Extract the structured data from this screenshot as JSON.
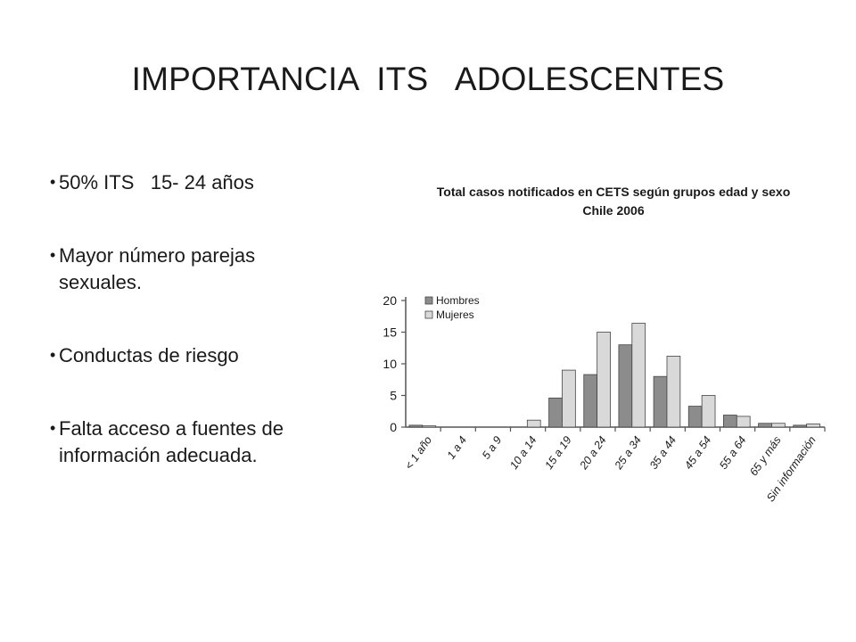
{
  "slide": {
    "title": "IMPORTANCIA  ITS   ADOLESCENTES",
    "bullets": [
      "50% ITS   15- 24 años",
      "Mayor número parejas sexuales.",
      "Conductas de riesgo",
      "Falta acceso a fuentes de información adecuada."
    ]
  },
  "chart_data": {
    "type": "bar",
    "title": "Total casos notificados en CETS según grupos edad y sexo",
    "subtitle": "Chile 2006",
    "categories": [
      "< 1 año",
      "1 a 4",
      "5 a 9",
      "10 a 14",
      "15 a 19",
      "20 a 24",
      "25 a 34",
      "35 a 44",
      "45 a 54",
      "55 a 64",
      "65 y más",
      "Sin información"
    ],
    "series": [
      {
        "name": "Hombres",
        "values": [
          0.3,
          0,
          0,
          0,
          4.6,
          8.3,
          13.0,
          8.0,
          3.3,
          1.9,
          0.6,
          0.3
        ],
        "color": "#8c8c8c"
      },
      {
        "name": "Mujeres",
        "values": [
          0.2,
          0,
          0,
          1.1,
          9.0,
          15.0,
          16.4,
          11.2,
          5.0,
          1.7,
          0.6,
          0.5
        ],
        "color": "#d9d9d9"
      }
    ],
    "ylim": [
      0,
      20
    ],
    "yticks": [
      0,
      5,
      10,
      15,
      20
    ],
    "legend_position": "top-left",
    "grid": false
  }
}
